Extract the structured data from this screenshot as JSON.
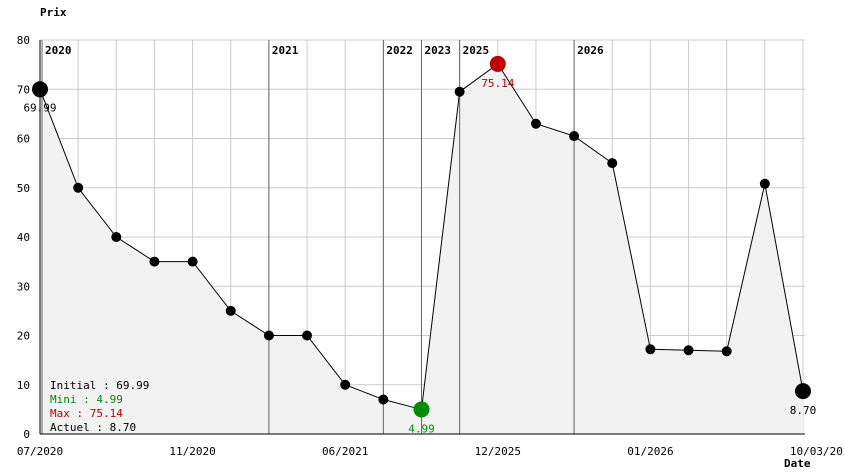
{
  "chart_data": {
    "type": "line",
    "ylabel": "Prix",
    "xlabel": "Date",
    "ylim": [
      0,
      80
    ],
    "yticks": [
      0,
      10,
      20,
      30,
      40,
      50,
      60,
      70,
      80
    ],
    "grid": true,
    "x_tick_labels": [
      "07/2020",
      "11/2020",
      "06/2021",
      "12/2025",
      "01/2026",
      "10/03/2026"
    ],
    "year_markers": [
      "2020",
      "2021",
      "2022",
      "2023",
      "2025",
      "2026"
    ],
    "values": [
      69.99,
      50.0,
      40.0,
      35.0,
      35.0,
      25.0,
      20.0,
      20.0,
      10.0,
      7.0,
      4.99,
      69.5,
      75.14,
      63.0,
      60.5,
      55.0,
      17.2,
      17.0,
      16.8,
      50.8,
      8.7
    ],
    "labels": {
      "initial": "69.99",
      "min": "4.99",
      "max": "75.14",
      "current": "8.70"
    },
    "legend": {
      "initial": "Initial : 69.99",
      "min": "Mini : 4.99",
      "max": "Max : 75.14",
      "current": "Actuel : 8.70"
    },
    "colors": {
      "line": "#000000",
      "point": "#000000",
      "min": "#008c00",
      "max": "#c00000",
      "area": "#f2f2f2",
      "grid": "#cccccc"
    }
  }
}
